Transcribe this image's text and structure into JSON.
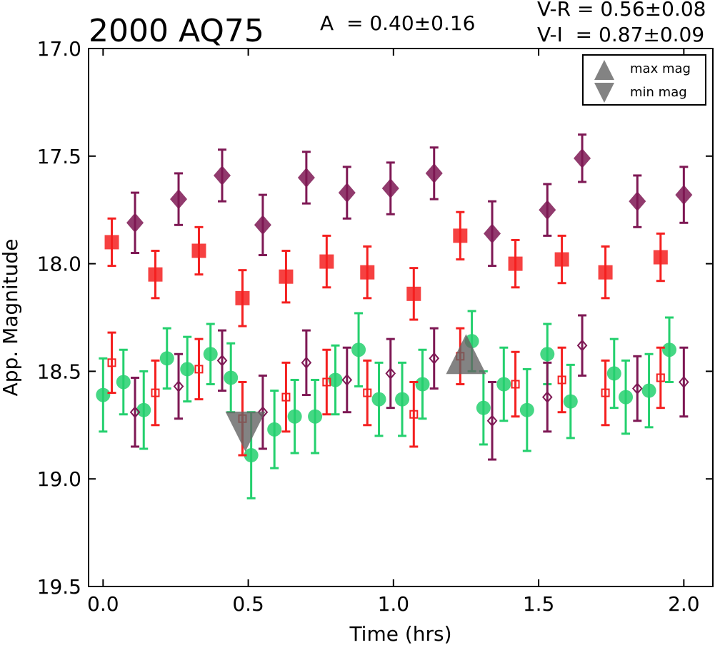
{
  "chart_data": {
    "type": "scatter",
    "title": "2000 AQ75",
    "amplitude_label": "A  = 0.40±0.16",
    "color_labels": [
      "V-R = 0.56±0.08",
      "V-I  = 0.87±0.09"
    ],
    "xlabel": "Time (hrs)",
    "ylabel": "App. Magnitude",
    "xlim": [
      -0.05,
      2.1
    ],
    "ylim": [
      19.5,
      17.0
    ],
    "y_inverted": true,
    "x_ticks": [
      "0.0",
      "0.5",
      "1.0",
      "1.5",
      "2.0"
    ],
    "y_ticks": [
      "17.0",
      "17.5",
      "18.0",
      "18.5",
      "19.0",
      "19.5"
    ],
    "grid": false,
    "legend": {
      "position": "top-right",
      "entries": [
        {
          "label": "max mag",
          "marker": "triangle-up",
          "color": "#646464"
        },
        {
          "label": "min mag",
          "marker": "triangle-down",
          "color": "#646464"
        }
      ]
    },
    "colors": {
      "green": "#24d06e",
      "red": "#f42020",
      "purple": "#7e1854",
      "gray": "#646464"
    },
    "series": [
      {
        "marker": "diamond-filled",
        "color": "#7e1854",
        "points": [
          {
            "x": 0.11,
            "y": 17.81,
            "err": 0.14
          },
          {
            "x": 0.26,
            "y": 17.7,
            "err": 0.12
          },
          {
            "x": 0.41,
            "y": 17.59,
            "err": 0.12
          },
          {
            "x": 0.55,
            "y": 17.82,
            "err": 0.14
          },
          {
            "x": 0.7,
            "y": 17.6,
            "err": 0.12
          },
          {
            "x": 0.84,
            "y": 17.67,
            "err": 0.12
          },
          {
            "x": 0.99,
            "y": 17.65,
            "err": 0.12
          },
          {
            "x": 1.14,
            "y": 17.58,
            "err": 0.12
          },
          {
            "x": 1.34,
            "y": 17.86,
            "err": 0.15
          },
          {
            "x": 1.53,
            "y": 17.75,
            "err": 0.12
          },
          {
            "x": 1.65,
            "y": 17.51,
            "err": 0.11
          },
          {
            "x": 1.84,
            "y": 17.71,
            "err": 0.12
          },
          {
            "x": 2.0,
            "y": 17.68,
            "err": 0.13
          }
        ]
      },
      {
        "marker": "square-filled",
        "color": "#f42020",
        "points": [
          {
            "x": 0.03,
            "y": 17.9,
            "err": 0.11
          },
          {
            "x": 0.18,
            "y": 18.05,
            "err": 0.11
          },
          {
            "x": 0.33,
            "y": 17.94,
            "err": 0.11
          },
          {
            "x": 0.48,
            "y": 18.16,
            "err": 0.13
          },
          {
            "x": 0.63,
            "y": 18.06,
            "err": 0.12
          },
          {
            "x": 0.77,
            "y": 17.99,
            "err": 0.12
          },
          {
            "x": 0.91,
            "y": 18.04,
            "err": 0.12
          },
          {
            "x": 1.07,
            "y": 18.14,
            "err": 0.12
          },
          {
            "x": 1.23,
            "y": 17.87,
            "err": 0.11
          },
          {
            "x": 1.42,
            "y": 18.0,
            "err": 0.11
          },
          {
            "x": 1.58,
            "y": 17.98,
            "err": 0.11
          },
          {
            "x": 1.73,
            "y": 18.04,
            "err": 0.12
          },
          {
            "x": 1.92,
            "y": 17.97,
            "err": 0.11
          }
        ]
      },
      {
        "marker": "circle-filled",
        "color": "#24d06e",
        "points": [
          {
            "x": 0.0,
            "y": 18.61,
            "err": 0.17
          },
          {
            "x": 0.07,
            "y": 18.55,
            "err": 0.15
          },
          {
            "x": 0.14,
            "y": 18.68,
            "err": 0.18
          },
          {
            "x": 0.22,
            "y": 18.44,
            "err": 0.14
          },
          {
            "x": 0.29,
            "y": 18.49,
            "err": 0.15
          },
          {
            "x": 0.37,
            "y": 18.42,
            "err": 0.14
          },
          {
            "x": 0.44,
            "y": 18.53,
            "err": 0.16
          },
          {
            "x": 0.51,
            "y": 18.89,
            "err": 0.2
          },
          {
            "x": 0.59,
            "y": 18.77,
            "err": 0.18
          },
          {
            "x": 0.66,
            "y": 18.71,
            "err": 0.17
          },
          {
            "x": 0.73,
            "y": 18.71,
            "err": 0.17
          },
          {
            "x": 0.8,
            "y": 18.54,
            "err": 0.16
          },
          {
            "x": 0.88,
            "y": 18.4,
            "err": 0.17
          },
          {
            "x": 0.95,
            "y": 18.63,
            "err": 0.17
          },
          {
            "x": 1.03,
            "y": 18.63,
            "err": 0.17
          },
          {
            "x": 1.1,
            "y": 18.56,
            "err": 0.16
          },
          {
            "x": 1.27,
            "y": 18.36,
            "err": 0.14
          },
          {
            "x": 1.31,
            "y": 18.67,
            "err": 0.17
          },
          {
            "x": 1.38,
            "y": 18.56,
            "err": 0.17
          },
          {
            "x": 1.46,
            "y": 18.68,
            "err": 0.19
          },
          {
            "x": 1.53,
            "y": 18.42,
            "err": 0.14
          },
          {
            "x": 1.61,
            "y": 18.64,
            "err": 0.17
          },
          {
            "x": 1.76,
            "y": 18.51,
            "err": 0.16
          },
          {
            "x": 1.8,
            "y": 18.62,
            "err": 0.17
          },
          {
            "x": 1.88,
            "y": 18.59,
            "err": 0.17
          },
          {
            "x": 1.95,
            "y": 18.4,
            "err": 0.15
          }
        ]
      },
      {
        "marker": "square-open",
        "color": "#f42020",
        "points": [
          {
            "x": 0.03,
            "y": 18.46,
            "err": 0.14
          },
          {
            "x": 0.18,
            "y": 18.6,
            "err": 0.15
          },
          {
            "x": 0.33,
            "y": 18.49,
            "err": 0.14
          },
          {
            "x": 0.48,
            "y": 18.72,
            "err": 0.17
          },
          {
            "x": 0.63,
            "y": 18.62,
            "err": 0.16
          },
          {
            "x": 0.77,
            "y": 18.55,
            "err": 0.15
          },
          {
            "x": 0.91,
            "y": 18.6,
            "err": 0.15
          },
          {
            "x": 1.07,
            "y": 18.7,
            "err": 0.15
          },
          {
            "x": 1.23,
            "y": 18.43,
            "err": 0.13
          },
          {
            "x": 1.42,
            "y": 18.56,
            "err": 0.15
          },
          {
            "x": 1.58,
            "y": 18.54,
            "err": 0.15
          },
          {
            "x": 1.73,
            "y": 18.6,
            "err": 0.15
          },
          {
            "x": 1.92,
            "y": 18.53,
            "err": 0.14
          }
        ]
      },
      {
        "marker": "diamond-open",
        "color": "#7e1854",
        "points": [
          {
            "x": 0.11,
            "y": 18.69,
            "err": 0.16
          },
          {
            "x": 0.26,
            "y": 18.57,
            "err": 0.15
          },
          {
            "x": 0.41,
            "y": 18.45,
            "err": 0.14
          },
          {
            "x": 0.55,
            "y": 18.69,
            "err": 0.17
          },
          {
            "x": 0.7,
            "y": 18.46,
            "err": 0.15
          },
          {
            "x": 0.84,
            "y": 18.54,
            "err": 0.15
          },
          {
            "x": 0.99,
            "y": 18.51,
            "err": 0.16
          },
          {
            "x": 1.14,
            "y": 18.44,
            "err": 0.14
          },
          {
            "x": 1.34,
            "y": 18.73,
            "err": 0.18
          },
          {
            "x": 1.53,
            "y": 18.62,
            "err": 0.16
          },
          {
            "x": 1.65,
            "y": 18.38,
            "err": 0.14
          },
          {
            "x": 1.84,
            "y": 18.58,
            "err": 0.15
          },
          {
            "x": 2.0,
            "y": 18.55,
            "err": 0.16
          }
        ]
      }
    ],
    "extrema": [
      {
        "label": "min mag",
        "marker": "triangle-down",
        "x": 0.49,
        "y": 18.78
      },
      {
        "label": "max mag",
        "marker": "triangle-up",
        "x": 1.25,
        "y": 18.42
      }
    ]
  }
}
